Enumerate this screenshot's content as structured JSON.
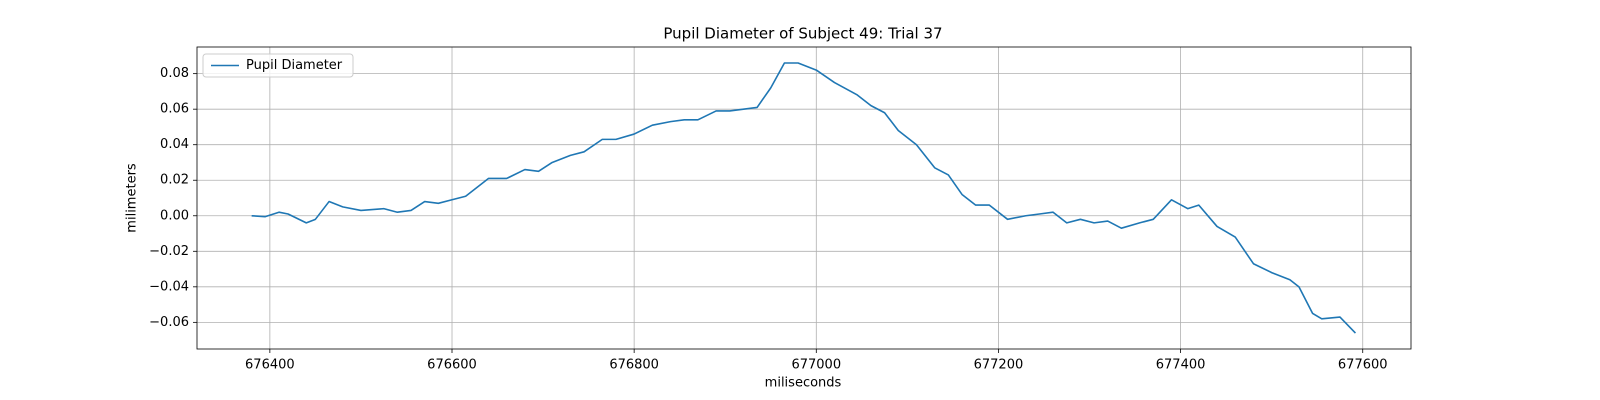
{
  "chart_data": {
    "type": "line",
    "title": "Pupil Diameter of Subject 49: Trial 37",
    "x_label": "miliseconds",
    "y_label": "milimeters",
    "xlim": [
      676320,
      677653
    ],
    "ylim": [
      -0.075,
      0.095
    ],
    "xticks": [
      676400,
      676600,
      676800,
      677000,
      677200,
      677400,
      677600
    ],
    "yticks": [
      {
        "value": -0.06,
        "label": "−0.06"
      },
      {
        "value": -0.04,
        "label": "−0.04"
      },
      {
        "value": -0.02,
        "label": "−0.02"
      },
      {
        "value": 0,
        "label": "0.00"
      },
      0.02,
      0.04,
      0.06,
      0.08
    ],
    "grid": true,
    "legend": "upper left",
    "x": [
      676380,
      676395,
      676410,
      676420,
      676440,
      676450,
      676465,
      676480,
      676500,
      676525,
      676540,
      676555,
      676570,
      676585,
      676600,
      676615,
      676640,
      676660,
      676680,
      676695,
      676710,
      676730,
      676745,
      676765,
      676780,
      676800,
      676820,
      676840,
      676855,
      676870,
      676890,
      676905,
      676920,
      676935,
      676950,
      676965,
      676980,
      677000,
      677020,
      677045,
      677060,
      677075,
      677090,
      677110,
      677130,
      677145,
      677160,
      677175,
      677190,
      677210,
      677230,
      677245,
      677260,
      677275,
      677290,
      677305,
      677320,
      677335,
      677355,
      677370,
      677390,
      677408,
      677420,
      677440,
      677460,
      677480,
      677500,
      677520,
      677530,
      677545,
      677555,
      677575,
      677592
    ],
    "series": [
      {
        "name": "Pupil Diameter",
        "color": "#1f77b4",
        "values": [
          0.0,
          -0.0005,
          0.002,
          0.001,
          -0.004,
          -0.002,
          0.008,
          0.005,
          0.003,
          0.004,
          0.002,
          0.003,
          0.008,
          0.007,
          0.009,
          0.011,
          0.021,
          0.021,
          0.026,
          0.025,
          0.03,
          0.034,
          0.036,
          0.043,
          0.043,
          0.046,
          0.051,
          0.053,
          0.054,
          0.054,
          0.059,
          0.059,
          0.06,
          0.061,
          0.072,
          0.086,
          0.086,
          0.082,
          0.075,
          0.068,
          0.062,
          0.058,
          0.048,
          0.04,
          0.027,
          0.023,
          0.012,
          0.006,
          0.006,
          -0.002,
          0.0,
          0.001,
          0.002,
          -0.004,
          -0.002,
          -0.004,
          -0.003,
          -0.007,
          -0.004,
          -0.002,
          0.009,
          0.004,
          0.006,
          -0.006,
          -0.012,
          -0.027,
          -0.032,
          -0.036,
          -0.04,
          -0.055,
          -0.058,
          -0.057,
          -0.066
        ]
      }
    ]
  }
}
